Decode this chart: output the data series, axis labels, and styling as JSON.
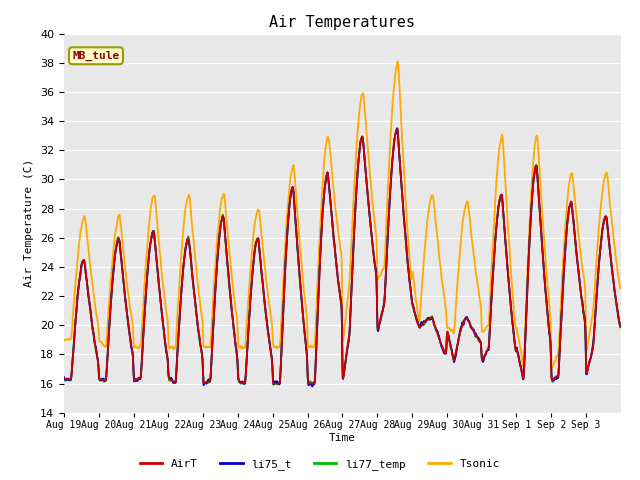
{
  "title": "Air Temperatures",
  "ylabel": "Air Temperature (C)",
  "xlabel": "Time",
  "ylim": [
    14,
    40
  ],
  "yticks": [
    14,
    16,
    18,
    20,
    22,
    24,
    26,
    28,
    30,
    32,
    34,
    36,
    38,
    40
  ],
  "station_label": "MB_tule",
  "legend_labels": [
    "AirT",
    "li75_t",
    "li77_temp",
    "Tsonic"
  ],
  "line_colors": [
    "#cc0000",
    "#0000cc",
    "#00bb00",
    "#ffaa00"
  ],
  "line_width": 1.3,
  "bg_color": "#e8e8e8",
  "fig_bg": "#ffffff",
  "xtick_labels": [
    "Aug 19",
    "Aug 20",
    "Aug 21",
    "Aug 22",
    "Aug 23",
    "Aug 24",
    "Aug 25",
    "Aug 26",
    "Aug 27",
    "Aug 28",
    "Aug 29",
    "Aug 30",
    "Aug 31",
    "Sep 1",
    "Sep 2",
    "Sep 3"
  ],
  "n_days": 16,
  "pts_per_day": 96,
  "daily_min_air": [
    16.3,
    16.2,
    16.4,
    16.0,
    16.2,
    16.0,
    16.0,
    16.0,
    19.5,
    21.5,
    19.8,
    17.5,
    18.5,
    16.2,
    16.5,
    18.5
  ],
  "daily_max_air": [
    24.5,
    26.0,
    26.5,
    26.0,
    27.5,
    26.0,
    29.5,
    30.5,
    33.0,
    33.5,
    20.5,
    20.5,
    29.0,
    31.0,
    28.5,
    27.5
  ],
  "daily_min_sonic": [
    19.0,
    18.5,
    18.5,
    18.5,
    18.5,
    18.5,
    18.5,
    18.5,
    23.0,
    24.0,
    20.0,
    19.5,
    20.0,
    17.0,
    18.0,
    21.0
  ],
  "daily_max_sonic": [
    27.5,
    27.5,
    29.0,
    29.0,
    29.0,
    28.0,
    31.0,
    33.0,
    36.0,
    38.0,
    29.0,
    28.5,
    33.0,
    33.0,
    30.5,
    30.5
  ],
  "peak_hour": 14.0
}
